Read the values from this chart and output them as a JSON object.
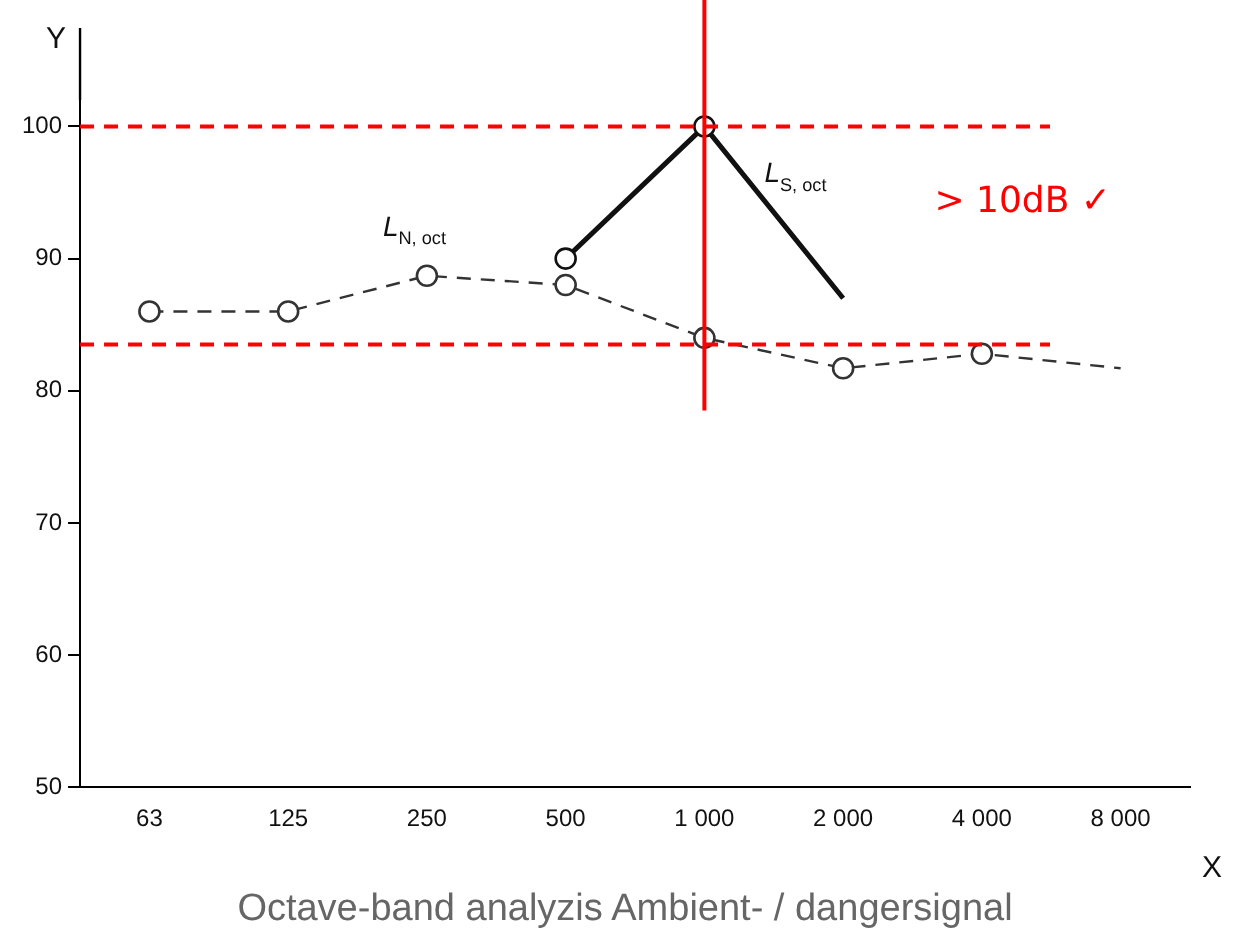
{
  "chart_data": {
    "type": "line",
    "xlabel": "X",
    "ylabel": "Y",
    "categories": [
      "63",
      "125",
      "250",
      "500",
      "1 000",
      "2 000",
      "4 000",
      "8 000"
    ],
    "series": [
      {
        "name": "L$_{N, oct}$",
        "color": "#333333",
        "line_style": "dashed",
        "marker": "circle",
        "values": [
          86,
          86,
          88.7,
          88,
          84,
          81.7,
          82.8,
          81.7
        ]
      },
      {
        "name": "L$_{S, oct}$",
        "color": "#111111",
        "line_style": "solid",
        "marker": "circle",
        "values": [
          null,
          null,
          null,
          90,
          100,
          87,
          null,
          null
        ]
      }
    ],
    "ylim": [
      50,
      102
    ],
    "yticks": [
      50,
      60,
      70,
      80,
      90,
      100
    ],
    "grid": false,
    "legend": false,
    "ref_lines": [
      {
        "axis": "y",
        "value": 100,
        "color": "#ff0000",
        "line_style": "dashed"
      },
      {
        "axis": "y",
        "value": 83.5,
        "color": "#ff0000",
        "line_style": "dashed"
      },
      {
        "axis": "x",
        "value": "1 000",
        "color": "#ff0000",
        "line_style": "solid"
      }
    ],
    "annotations": [
      "> 10dB ✓",
      "Octave-band analyzis Ambient- /  dangersignal"
    ]
  }
}
